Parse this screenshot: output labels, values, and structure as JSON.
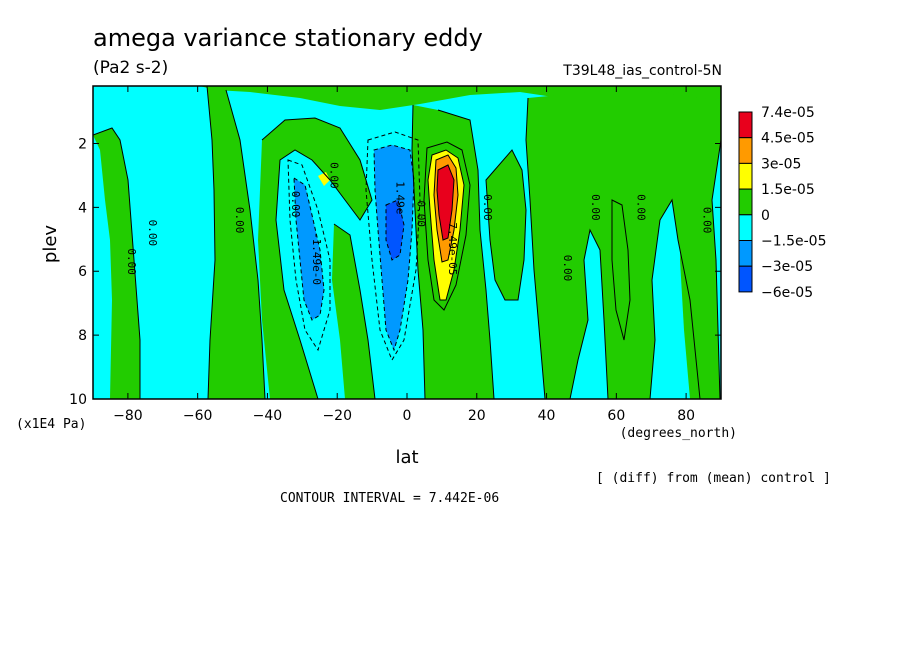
{
  "chart_data": {
    "type": "heatmap",
    "title": "amega variance stationary eddy",
    "units": "(Pa2 s-2)",
    "run_label": "T39L48_ias_control-5N",
    "xlabel": "lat",
    "x_units": "(degrees_north)",
    "ylabel": "plev",
    "y_units": "(x1E4 Pa)",
    "x_ticks": [
      -80,
      -60,
      -40,
      -20,
      0,
      20,
      40,
      60,
      80
    ],
    "y_ticks": [
      2,
      4,
      6,
      8,
      10
    ],
    "xlim": [
      -90,
      90
    ],
    "ylim": [
      10,
      0.2
    ],
    "legend_labels": [
      "7.4e-05",
      "4.5e-05",
      "3e-05",
      "1.5e-05",
      "0",
      "−1.5e-05",
      "−3e-05",
      "−6e-05"
    ],
    "legend_colors": [
      "#e8001c",
      "#ff9a00",
      "#ffff00",
      "#22cc00",
      "#00ffff",
      "#0099ff",
      "#0055ff"
    ],
    "contour_labels": [
      {
        "text": "0.00",
        "lat": -74,
        "plev": 4.8
      },
      {
        "text": "0.00",
        "lat": -80,
        "plev": 5.7
      },
      {
        "text": "0.00",
        "lat": -49,
        "plev": 4.4
      },
      {
        "text": "0.00",
        "lat": -33,
        "plev": 3.9
      },
      {
        "text": "-1.49e-0",
        "lat": -27,
        "plev": 5.6
      },
      {
        "text": "0.00",
        "lat": -22,
        "plev": 3.0
      },
      {
        "text": "1.49e",
        "lat": -3,
        "plev": 3.7
      },
      {
        "text": "0.00",
        "lat": 3,
        "plev": 4.2
      },
      {
        "text": "7.49e-05",
        "lat": 12,
        "plev": 5.3
      },
      {
        "text": "0.00",
        "lat": 22,
        "plev": 4.0
      },
      {
        "text": "0.00",
        "lat": 45,
        "plev": 5.9
      },
      {
        "text": "0.00",
        "lat": 53,
        "plev": 4.0
      },
      {
        "text": "0.00",
        "lat": 66,
        "plev": 4.0
      },
      {
        "text": "0.00",
        "lat": 85,
        "plev": 4.4
      }
    ],
    "footnote_diff": "[ (diff) from (mean) control ]",
    "contour_interval": "CONTOUR INTERVAL = 7.442E-06"
  }
}
